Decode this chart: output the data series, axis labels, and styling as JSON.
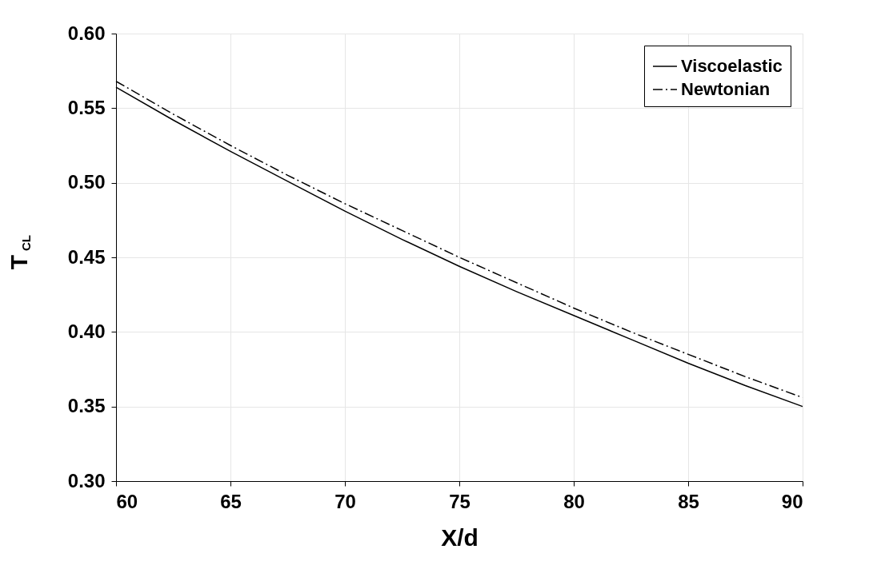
{
  "chart_data": {
    "type": "line",
    "xlabel": "X/d",
    "ylabel": "T$_{CL}$",
    "x": [
      60,
      62.5,
      65,
      67.5,
      70,
      72.5,
      75,
      77.5,
      80,
      82.5,
      85,
      87.5,
      90
    ],
    "series": [
      {
        "name": "Viscoelastic",
        "color": "#000000",
        "line_style": "solid",
        "values": [
          0.564,
          0.542,
          0.521,
          0.501,
          0.481,
          0.462,
          0.444,
          0.427,
          0.411,
          0.395,
          0.379,
          0.364,
          0.35
        ]
      },
      {
        "name": "Newtonian",
        "color": "#000000",
        "line_style": "dashdot",
        "values": [
          0.568,
          0.546,
          0.525,
          0.505,
          0.486,
          0.468,
          0.45,
          0.433,
          0.416,
          0.4,
          0.385,
          0.37,
          0.356
        ]
      }
    ],
    "xlim": [
      60,
      90
    ],
    "xticks": [
      60,
      65,
      70,
      75,
      80,
      85,
      90
    ],
    "ylim": [
      0.3,
      0.6
    ],
    "yticks": [
      {
        "value": 0.3,
        "label": "0.30"
      },
      {
        "value": 0.35,
        "label": "0.35"
      },
      {
        "value": 0.4,
        "label": "0.40"
      },
      {
        "value": 0.45,
        "label": "0.45"
      },
      {
        "value": 0.5,
        "label": "0.50"
      },
      {
        "value": 0.55,
        "label": "0.55"
      },
      {
        "value": 0.6,
        "label": "0.60"
      }
    ],
    "grid": true,
    "legend": "top right",
    "marker": "none"
  }
}
